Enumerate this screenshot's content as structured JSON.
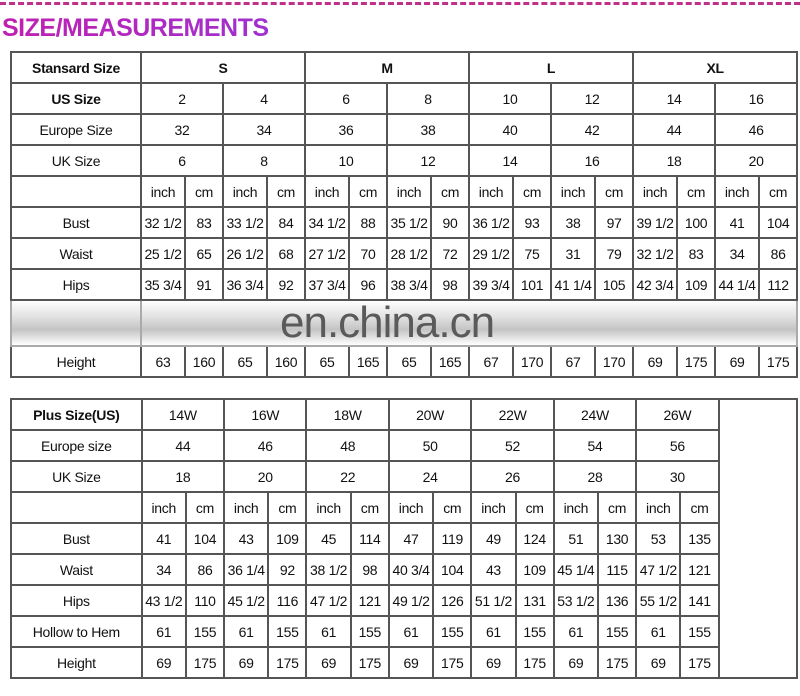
{
  "title": "SIZE/MEASUREMENTS",
  "watermark": "en.china.cn",
  "accent_color": "#b020c0",
  "standard_table": {
    "header_label": "Stansard Size",
    "groups": [
      "S",
      "M",
      "L",
      "XL"
    ],
    "rows": [
      {
        "label": "US Size",
        "bold": true,
        "values": [
          "2",
          "4",
          "6",
          "8",
          "10",
          "12",
          "14",
          "16"
        ]
      },
      {
        "label": "Europe Size",
        "values": [
          "32",
          "34",
          "36",
          "38",
          "40",
          "42",
          "44",
          "46"
        ]
      },
      {
        "label": "UK Size",
        "values": [
          "6",
          "8",
          "10",
          "12",
          "14",
          "16",
          "18",
          "20"
        ]
      }
    ],
    "units": [
      "inch",
      "cm"
    ],
    "measurements": [
      {
        "label": "Bust",
        "values": [
          "32 1/2",
          "83",
          "33 1/2",
          "84",
          "34 1/2",
          "88",
          "35 1/2",
          "90",
          "36 1/2",
          "93",
          "38",
          "97",
          "39 1/2",
          "100",
          "41",
          "104"
        ]
      },
      {
        "label": "Waist",
        "values": [
          "25 1/2",
          "65",
          "26 1/2",
          "68",
          "27 1/2",
          "70",
          "28 1/2",
          "72",
          "29 1/2",
          "75",
          "31",
          "79",
          "32 1/2",
          "83",
          "34",
          "86"
        ]
      },
      {
        "label": "Hips",
        "values": [
          "35 3/4",
          "91",
          "36 3/4",
          "92",
          "37 3/4",
          "96",
          "38 3/4",
          "98",
          "39 3/4",
          "101",
          "41 1/4",
          "105",
          "42 3/4",
          "109",
          "44 1/4",
          "112"
        ]
      },
      {
        "label": "",
        "obscured": true,
        "values": []
      },
      {
        "label": "Height",
        "values": [
          "63",
          "160",
          "65",
          "160",
          "65",
          "165",
          "65",
          "165",
          "67",
          "170",
          "67",
          "170",
          "69",
          "175",
          "69",
          "175"
        ]
      }
    ]
  },
  "plus_table": {
    "header_label": "Plus Size(US)",
    "sizes": [
      "14W",
      "16W",
      "18W",
      "20W",
      "22W",
      "24W",
      "26W"
    ],
    "rows": [
      {
        "label": "Europe size",
        "values": [
          "44",
          "46",
          "48",
          "50",
          "52",
          "54",
          "56"
        ]
      },
      {
        "label": "UK Size",
        "values": [
          "18",
          "20",
          "22",
          "24",
          "26",
          "28",
          "30"
        ]
      }
    ],
    "units": [
      "inch",
      "cm"
    ],
    "measurements": [
      {
        "label": "Bust",
        "values": [
          "41",
          "104",
          "43",
          "109",
          "45",
          "114",
          "47",
          "119",
          "49",
          "124",
          "51",
          "130",
          "53",
          "135"
        ]
      },
      {
        "label": "Waist",
        "values": [
          "34",
          "86",
          "36 1/4",
          "92",
          "38 1/2",
          "98",
          "40 3/4",
          "104",
          "43",
          "109",
          "45 1/4",
          "115",
          "47 1/2",
          "121"
        ]
      },
      {
        "label": "Hips",
        "values": [
          "43 1/2",
          "110",
          "45 1/2",
          "116",
          "47 1/2",
          "121",
          "49 1/2",
          "126",
          "51 1/2",
          "131",
          "53 1/2",
          "136",
          "55 1/2",
          "141"
        ]
      },
      {
        "label": "Hollow to Hem",
        "values": [
          "61",
          "155",
          "61",
          "155",
          "61",
          "155",
          "61",
          "155",
          "61",
          "155",
          "61",
          "155",
          "61",
          "155"
        ]
      },
      {
        "label": "Height",
        "values": [
          "69",
          "175",
          "69",
          "175",
          "69",
          "175",
          "69",
          "175",
          "69",
          "175",
          "69",
          "175",
          "69",
          "175"
        ]
      }
    ]
  }
}
